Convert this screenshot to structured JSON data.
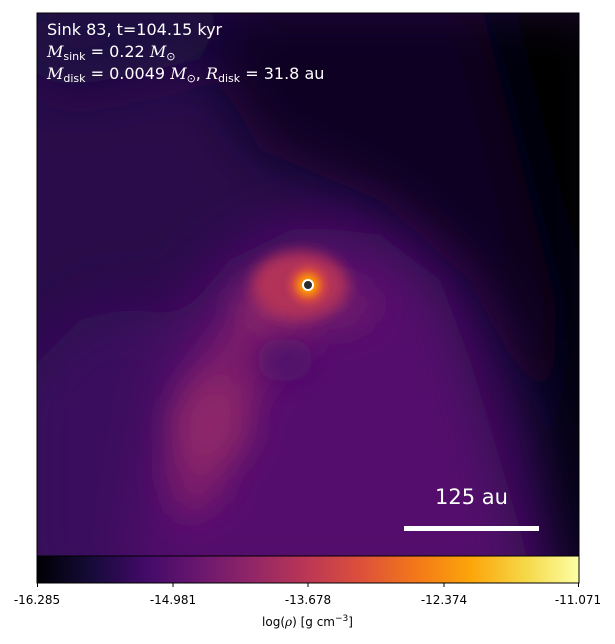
{
  "annotation": {
    "title": "Sink 83, t=104.15 kyr",
    "sink_mass_symbol": "M",
    "sink_mass_subscript": "sink",
    "sink_mass_value": " = 0.22 ",
    "sink_mass_unit": "M",
    "sink_mass_unit_sub": "⊙",
    "disk_mass_symbol": "M",
    "disk_mass_subscript": "disk",
    "disk_mass_value": " = 0.0049 ",
    "disk_mass_unit": "M",
    "disk_mass_unit_sub": "⊙",
    "separator": ", ",
    "disk_radius_symbol": "R",
    "disk_radius_subscript": "disk",
    "disk_radius_value": " = 31.8 au"
  },
  "scale_bar": {
    "label": "125 au"
  },
  "colorbar": {
    "colormap": "inferno",
    "min": -16.285,
    "max": -11.071,
    "ticks": [
      "-16.285",
      "-14.981",
      "-13.678",
      "-12.374",
      "-11.071"
    ],
    "label_prefix": "log(",
    "label_symbol": "ρ",
    "label_suffix": ") [g cm",
    "label_exp": "−3",
    "label_end": "]"
  },
  "sink_marker": {
    "edge_color": "#ffffff",
    "face_color": "#2b2b2b"
  },
  "colors": {
    "frame": "#000000",
    "background": "#ffffff",
    "text_overlay": "#ffffff"
  }
}
